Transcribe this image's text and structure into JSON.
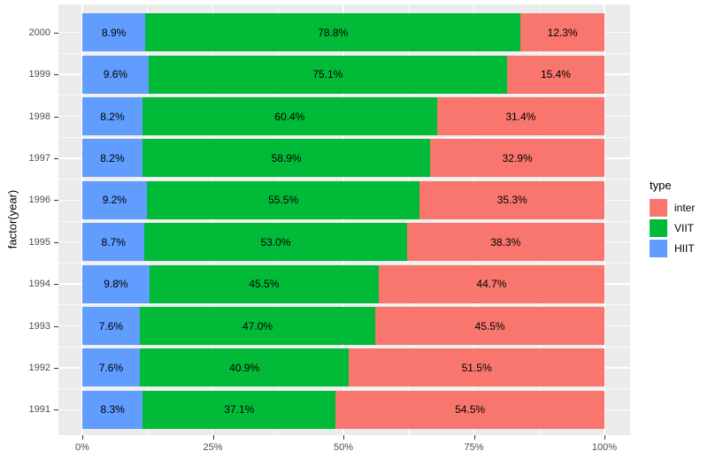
{
  "chart_data": {
    "type": "bar",
    "variant": "horizontal-stacked-percent",
    "title": "",
    "xlabel": "",
    "ylabel": "factor(year)",
    "xlim": [
      0,
      100
    ],
    "grid": true,
    "panel_bg": "#EBEBEB",
    "grid_color": "#FFFFFF",
    "axis_text_color": "#4D4D4D",
    "categories": [
      "2000",
      "1999",
      "1998",
      "1997",
      "1996",
      "1995",
      "1994",
      "1993",
      "1992",
      "1991"
    ],
    "series": [
      {
        "name": "HIIT",
        "color": "#619CFF",
        "values": [
          8.9,
          9.6,
          8.2,
          8.2,
          9.2,
          8.7,
          9.8,
          7.6,
          7.6,
          8.3
        ],
        "labels": [
          "8.9%",
          "9.6%",
          "8.2%",
          "8.2%",
          "9.2%",
          "8.7%",
          "9.8%",
          "7.6%",
          "7.6%",
          "8.3%"
        ]
      },
      {
        "name": "VIIT",
        "color": "#00BA38",
        "values": [
          78.8,
          75.1,
          60.4,
          58.9,
          55.5,
          53.0,
          45.5,
          47.0,
          40.9,
          37.1
        ],
        "labels": [
          "78.8%",
          "75.1%",
          "60.4%",
          "58.9%",
          "55.5%",
          "53.0%",
          "45.5%",
          "47.0%",
          "40.9%",
          "37.1%"
        ]
      },
      {
        "name": "inter",
        "color": "#F8766D",
        "values": [
          12.3,
          15.4,
          31.4,
          32.9,
          35.3,
          38.3,
          44.7,
          45.5,
          51.5,
          54.5
        ],
        "labels": [
          "12.3%",
          "15.4%",
          "31.4%",
          "32.9%",
          "35.3%",
          "38.3%",
          "44.7%",
          "45.5%",
          "51.5%",
          "54.5%"
        ]
      }
    ],
    "x_ticks": [
      {
        "pos": 0,
        "label": "0%"
      },
      {
        "pos": 25,
        "label": "25%"
      },
      {
        "pos": 50,
        "label": "50%"
      },
      {
        "pos": 75,
        "label": "75%"
      },
      {
        "pos": 100,
        "label": "100%"
      }
    ],
    "x_minor_ticks": [
      12.5,
      37.5,
      62.5,
      87.5
    ],
    "legend": {
      "title": "type",
      "position": "right",
      "entries": [
        {
          "label": "inter",
          "color": "#F8766D"
        },
        {
          "label": "VIIT",
          "color": "#00BA38"
        },
        {
          "label": "HIIT",
          "color": "#619CFF"
        }
      ]
    }
  }
}
